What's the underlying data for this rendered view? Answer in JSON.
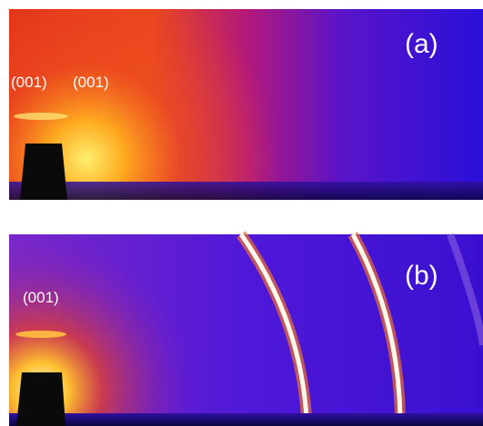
{
  "panels": [
    {
      "label": "(a)",
      "peaks": [
        "(001)",
        "(001)"
      ]
    },
    {
      "label": "(b)",
      "peaks": [
        "(001)"
      ]
    }
  ]
}
